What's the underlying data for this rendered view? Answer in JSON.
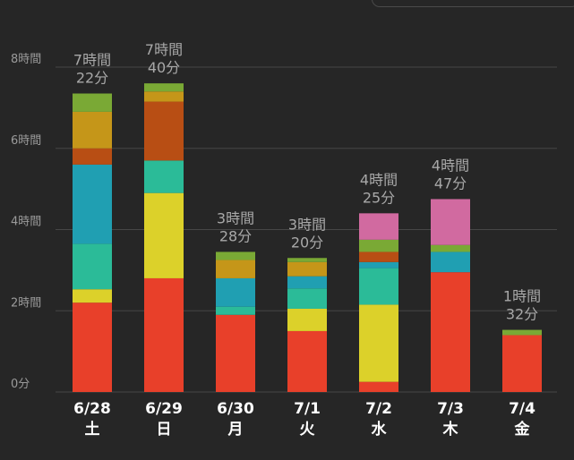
{
  "chart_data": {
    "type": "bar",
    "stacked": true,
    "grid": true,
    "y_unit": "hours",
    "ylim": [
      0,
      8
    ],
    "y_ticks": [
      {
        "value": 0,
        "label": "0分"
      },
      {
        "value": 2,
        "label": "2時間"
      },
      {
        "value": 4,
        "label": "4時間"
      },
      {
        "value": 6,
        "label": "6時間"
      },
      {
        "value": 8,
        "label": "8時間"
      }
    ],
    "categories": [
      {
        "date": "6/28",
        "day": "土"
      },
      {
        "date": "6/29",
        "day": "日"
      },
      {
        "date": "6/30",
        "day": "月"
      },
      {
        "date": "7/1",
        "day": "火"
      },
      {
        "date": "7/2",
        "day": "水"
      },
      {
        "date": "7/3",
        "day": "木"
      },
      {
        "date": "7/4",
        "day": "金"
      }
    ],
    "totals": [
      {
        "line1": "7時間",
        "line2": "22分"
      },
      {
        "line1": "7時間",
        "line2": "40分"
      },
      {
        "line1": "3時間",
        "line2": "28分"
      },
      {
        "line1": "3時間",
        "line2": "20分"
      },
      {
        "line1": "4時間",
        "line2": "25分"
      },
      {
        "line1": "4時間",
        "line2": "47分"
      },
      {
        "line1": "1時間",
        "line2": "32分"
      }
    ],
    "series": [
      {
        "color": "#e8402a",
        "values": [
          2.2,
          2.8,
          1.9,
          1.5,
          0.25,
          2.95,
          1.4
        ]
      },
      {
        "color": "#dcd12a",
        "values": [
          0.33,
          2.1,
          0,
          0.55,
          1.9,
          0,
          0
        ]
      },
      {
        "color": "#2bbb98",
        "values": [
          1.12,
          0.8,
          0.2,
          0.5,
          0.9,
          0,
          0
        ]
      },
      {
        "color": "#209fb2",
        "values": [
          1.95,
          0,
          0.7,
          0.3,
          0.15,
          0.5,
          0
        ]
      },
      {
        "color": "#b84e14",
        "values": [
          0.4,
          1.45,
          0,
          0,
          0.25,
          0,
          0
        ]
      },
      {
        "color": "#c59619",
        "values": [
          0.9,
          0.25,
          0.45,
          0.35,
          0,
          0,
          0
        ]
      },
      {
        "color": "#7aa935",
        "values": [
          0.45,
          0.2,
          0.2,
          0.1,
          0.3,
          0.17,
          0.13
        ]
      },
      {
        "color": "#d16aa0",
        "values": [
          0,
          0,
          0,
          0,
          0.65,
          1.13,
          0
        ]
      }
    ]
  }
}
